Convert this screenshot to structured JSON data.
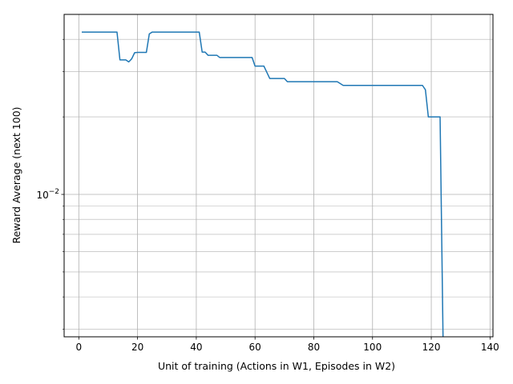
{
  "chart_data": {
    "type": "line",
    "title": "",
    "xlabel": "Unit of training (Actions in W1, Episodes in W2)",
    "ylabel": "Reward Average (next 100)",
    "xlim": [
      -5,
      141
    ],
    "ylim": [
      0.0028,
      0.05
    ],
    "yscale": "log",
    "grid": true,
    "grid_minor": true,
    "x_ticks": [
      0,
      20,
      40,
      60,
      80,
      100,
      120,
      140
    ],
    "x_tick_labels": [
      "0",
      "20",
      "40",
      "60",
      "80",
      "100",
      "120",
      "140"
    ],
    "y_major_ticks": [
      0.01
    ],
    "y_major_tick_labels": [
      {
        "base": "10",
        "exp": "−2"
      }
    ],
    "y_minor_ticks": [
      0.003,
      0.004,
      0.005,
      0.006,
      0.007,
      0.008,
      0.009,
      0.02,
      0.03,
      0.04
    ],
    "line_color": "#1f77b4",
    "series": [
      {
        "x": [
          1,
          13,
          14,
          16,
          17,
          18,
          19,
          20,
          23,
          24,
          25,
          41,
          42,
          43,
          44,
          47,
          48,
          59,
          60,
          63,
          65,
          70,
          71,
          88,
          90,
          117,
          118,
          119,
          123,
          124
        ],
        "y": [
          0.0427,
          0.0427,
          0.0333,
          0.0333,
          0.0327,
          0.0336,
          0.0355,
          0.0356,
          0.0356,
          0.042,
          0.0427,
          0.0427,
          0.0357,
          0.0357,
          0.0347,
          0.0347,
          0.034,
          0.034,
          0.0315,
          0.0315,
          0.0282,
          0.0282,
          0.0274,
          0.0274,
          0.0265,
          0.0265,
          0.0255,
          0.02,
          0.02,
          0.0028
        ]
      }
    ]
  }
}
